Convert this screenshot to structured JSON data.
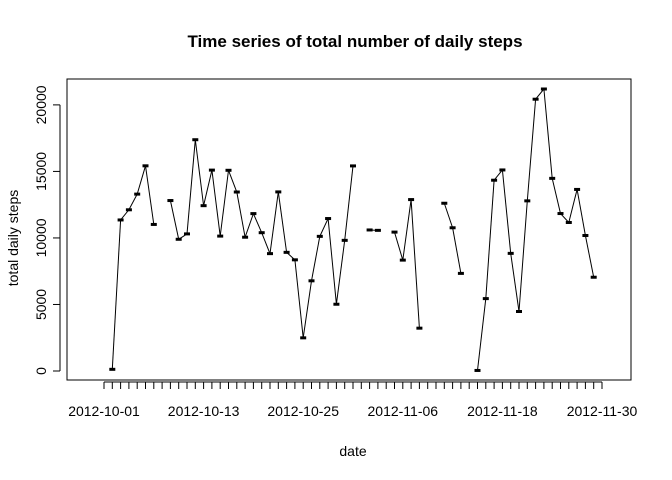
{
  "chart_data": {
    "type": "line",
    "title": "Time series of total number of daily steps",
    "xlabel": "date",
    "ylabel": "total daily steps",
    "x_start": "2012-10-01",
    "x_end": "2012-11-30",
    "x_tick_labels": [
      "2012-10-01",
      "2012-10-13",
      "2012-10-25",
      "2012-11-06",
      "2012-11-18",
      "2012-11-30"
    ],
    "y_ticks": [
      0,
      5000,
      10000,
      15000,
      20000
    ],
    "y_tick_labels": [
      "0",
      "5000",
      "10000",
      "15000",
      "20000"
    ],
    "ylim": [
      0,
      21194
    ],
    "grid": false,
    "legend": "none",
    "points": [
      {
        "date": "2012-10-01",
        "steps": null
      },
      {
        "date": "2012-10-02",
        "steps": 126
      },
      {
        "date": "2012-10-03",
        "steps": 11352
      },
      {
        "date": "2012-10-04",
        "steps": 12116
      },
      {
        "date": "2012-10-05",
        "steps": 13294
      },
      {
        "date": "2012-10-06",
        "steps": 15420
      },
      {
        "date": "2012-10-07",
        "steps": 11015
      },
      {
        "date": "2012-10-08",
        "steps": null
      },
      {
        "date": "2012-10-09",
        "steps": 12811
      },
      {
        "date": "2012-10-10",
        "steps": 9900
      },
      {
        "date": "2012-10-11",
        "steps": 10304
      },
      {
        "date": "2012-10-12",
        "steps": 17382
      },
      {
        "date": "2012-10-13",
        "steps": 12426
      },
      {
        "date": "2012-10-14",
        "steps": 15098
      },
      {
        "date": "2012-10-15",
        "steps": 10139
      },
      {
        "date": "2012-10-16",
        "steps": 15084
      },
      {
        "date": "2012-10-17",
        "steps": 13452
      },
      {
        "date": "2012-10-18",
        "steps": 10056
      },
      {
        "date": "2012-10-19",
        "steps": 11829
      },
      {
        "date": "2012-10-20",
        "steps": 10395
      },
      {
        "date": "2012-10-21",
        "steps": 8821
      },
      {
        "date": "2012-10-22",
        "steps": 13460
      },
      {
        "date": "2012-10-23",
        "steps": 8918
      },
      {
        "date": "2012-10-24",
        "steps": 8355
      },
      {
        "date": "2012-10-25",
        "steps": 2492
      },
      {
        "date": "2012-10-26",
        "steps": 6778
      },
      {
        "date": "2012-10-27",
        "steps": 10119
      },
      {
        "date": "2012-10-28",
        "steps": 11458
      },
      {
        "date": "2012-10-29",
        "steps": 5018
      },
      {
        "date": "2012-10-30",
        "steps": 9819
      },
      {
        "date": "2012-10-31",
        "steps": 15414
      },
      {
        "date": "2012-11-01",
        "steps": null
      },
      {
        "date": "2012-11-02",
        "steps": 10600
      },
      {
        "date": "2012-11-03",
        "steps": 10571
      },
      {
        "date": "2012-11-04",
        "steps": null
      },
      {
        "date": "2012-11-05",
        "steps": 10439
      },
      {
        "date": "2012-11-06",
        "steps": 8334
      },
      {
        "date": "2012-11-07",
        "steps": 12883
      },
      {
        "date": "2012-11-08",
        "steps": 3219
      },
      {
        "date": "2012-11-09",
        "steps": null
      },
      {
        "date": "2012-11-10",
        "steps": null
      },
      {
        "date": "2012-11-11",
        "steps": 12608
      },
      {
        "date": "2012-11-12",
        "steps": 10765
      },
      {
        "date": "2012-11-13",
        "steps": 7336
      },
      {
        "date": "2012-11-14",
        "steps": null
      },
      {
        "date": "2012-11-15",
        "steps": 41
      },
      {
        "date": "2012-11-16",
        "steps": 5441
      },
      {
        "date": "2012-11-17",
        "steps": 14339
      },
      {
        "date": "2012-11-18",
        "steps": 15110
      },
      {
        "date": "2012-11-19",
        "steps": 8841
      },
      {
        "date": "2012-11-20",
        "steps": 4472
      },
      {
        "date": "2012-11-21",
        "steps": 12787
      },
      {
        "date": "2012-11-22",
        "steps": 20427
      },
      {
        "date": "2012-11-23",
        "steps": 21194
      },
      {
        "date": "2012-11-24",
        "steps": 14478
      },
      {
        "date": "2012-11-25",
        "steps": 11834
      },
      {
        "date": "2012-11-26",
        "steps": 11162
      },
      {
        "date": "2012-11-27",
        "steps": 13646
      },
      {
        "date": "2012-11-28",
        "steps": 10183
      },
      {
        "date": "2012-11-29",
        "steps": 7047
      },
      {
        "date": "2012-11-30",
        "steps": null
      }
    ]
  }
}
